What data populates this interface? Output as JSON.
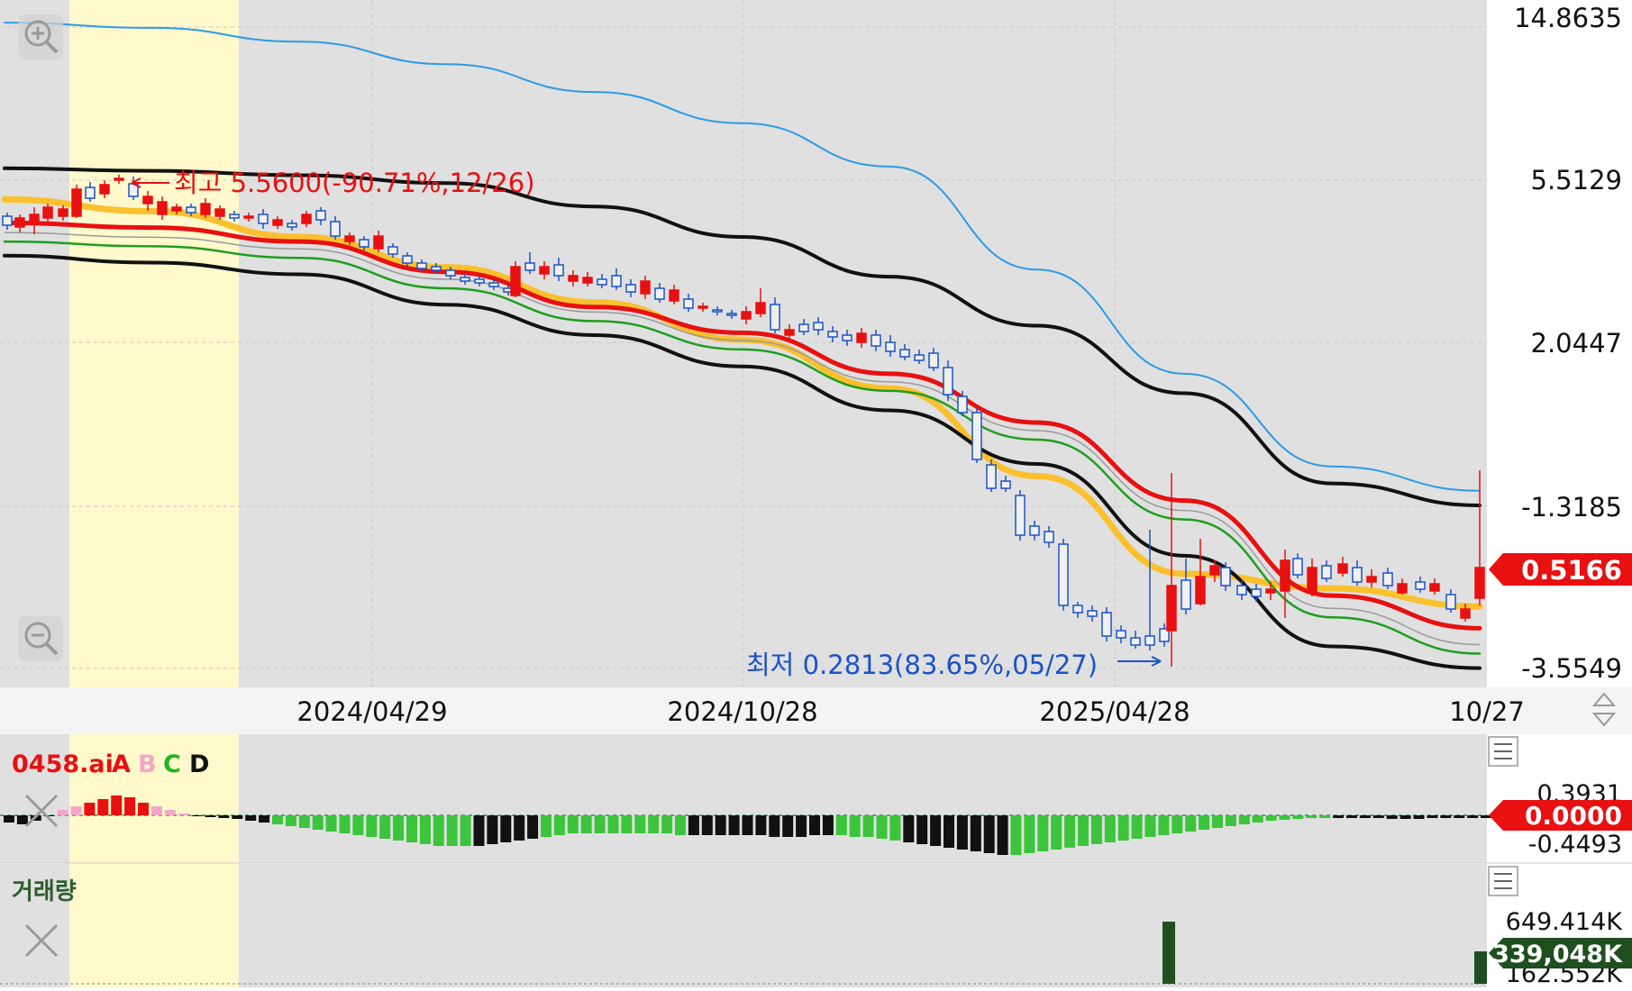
{
  "main": {
    "price_axis_labels": [
      "14.8635",
      "5.5129",
      "2.0447",
      "-1.3185",
      "-3.5549"
    ],
    "current_price": "0.5166",
    "high_annotation": "최고 5.5600(-90.71%,12/26)",
    "low_annotation": "최저 0.2813(83.65%,05/27)",
    "date_labels": [
      "2024/04/29",
      "2024/10/28",
      "2025/04/28",
      "10/27"
    ],
    "zoom_in_icon": "zoom-in-icon",
    "zoom_out_icon": "zoom-out-icon",
    "scroll_icon": "up-down-arrows-icon"
  },
  "indicator": {
    "name": "0458.ai",
    "legend": [
      {
        "label": "A",
        "color": "#e81010"
      },
      {
        "label": "B",
        "color": "#f4a6c8"
      },
      {
        "label": "C",
        "color": "#22b422"
      },
      {
        "label": "D",
        "color": "#111111"
      }
    ],
    "axis_labels": [
      "0.3931",
      "-0.4493"
    ],
    "current_value": "0.0000",
    "close_icon": "close-icon",
    "menu_icon": "menu-icon"
  },
  "volume": {
    "title": "거래량",
    "axis_labels": [
      "649.414K",
      "162.552K"
    ],
    "current_value": "339,048K",
    "close_icon": "close-icon",
    "menu_icon": "menu-icon"
  },
  "colors": {
    "up": "#e81010",
    "down": "#1a52c8",
    "ma_yellow": "#fbc02d",
    "ma_red": "#e81010",
    "ma_green": "#1e9e1e",
    "ma_black": "#111111",
    "ma_blue": "#2b9be8",
    "highlight": "#fff9cc",
    "chart_bg": "#e0e0e0",
    "volume_bar": "#1f4e1f"
  },
  "chart_data": [
    {
      "type": "candlestick",
      "title": "",
      "x_ticks": [
        "2024/04/29",
        "2024/10/28",
        "2025/04/28",
        "10/27"
      ],
      "y_ticks": [
        14.8635,
        5.5129,
        2.0447,
        -1.3185,
        -3.5549
      ],
      "y_scale": "non-linear",
      "annotations": [
        {
          "text": "최고 5.5600(-90.71%,12/26)",
          "value": 5.56
        },
        {
          "text": "최저 0.2813(83.65%,05/27)",
          "value": 0.2813
        }
      ],
      "last_value": 0.5166,
      "series": [
        {
          "name": "",
          "type": "line",
          "color": "#2b9be8",
          "values": [
            14.6,
            14.3,
            13.5,
            12.2,
            10.6,
            8.8,
            6.3,
            3.6,
            1.4,
            -0.5,
            -1.0
          ]
        },
        {
          "name": "",
          "type": "line",
          "color": "#111111",
          "values": [
            6.2,
            6.05,
            5.8,
            5.45,
            4.95,
            4.3,
            3.45,
            2.4,
            1.0,
            -0.85,
            -1.3
          ]
        },
        {
          "name": "",
          "type": "line",
          "color": "#fbc02d",
          "values": [
            5.1,
            4.85,
            4.3,
            3.65,
            2.9,
            2.1,
            1.1,
            -0.7,
            -2.25,
            -2.45,
            -2.7
          ]
        },
        {
          "name": "",
          "type": "line",
          "color": "#e81010",
          "values": [
            4.6,
            4.5,
            4.2,
            3.55,
            2.8,
            2.25,
            1.4,
            0.4,
            -1.2,
            -2.55,
            -3.0
          ]
        },
        {
          "name": "",
          "type": "line",
          "color": "#1e9e1e",
          "values": [
            4.2,
            4.1,
            3.85,
            3.2,
            2.5,
            1.9,
            1.05,
            0.05,
            -1.5,
            -2.85,
            -3.35
          ]
        },
        {
          "name": "",
          "type": "line",
          "color": "#111111",
          "values": [
            3.9,
            3.75,
            3.5,
            2.85,
            2.2,
            1.55,
            0.65,
            -0.45,
            -2.0,
            -3.25,
            -3.55
          ]
        }
      ]
    },
    {
      "type": "bar",
      "title": "0458.ai A B C D",
      "y_ticks": [
        0.3931,
        -0.4493
      ],
      "last_value": 0.0
    },
    {
      "type": "bar",
      "title": "거래량",
      "y_ticks": [
        "649.414K",
        "162.552K"
      ],
      "last_value": "339,048K"
    }
  ]
}
